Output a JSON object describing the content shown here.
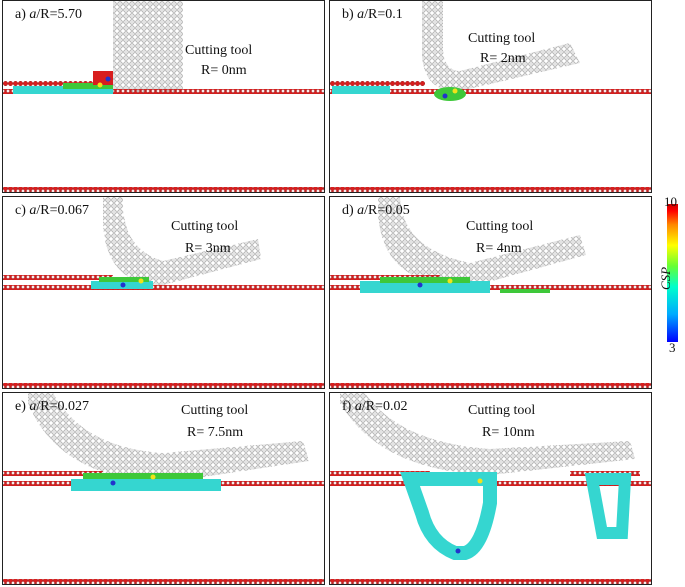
{
  "panels": [
    {
      "id": "a",
      "letter": "a)",
      "ratio_var": "a",
      "ratio_rest": "/R=5.70",
      "tool_title": "Cutting tool",
      "radius": "R= 0nm"
    },
    {
      "id": "b",
      "letter": "b)",
      "ratio_var": "a",
      "ratio_rest": "/R=0.1",
      "tool_title": "Cutting tool",
      "radius": "R= 2nm"
    },
    {
      "id": "c",
      "letter": "c)",
      "ratio_var": "a",
      "ratio_rest": "/R=0.067",
      "tool_title": "Cutting tool",
      "radius": "R= 3nm"
    },
    {
      "id": "d",
      "letter": "d)",
      "ratio_var": "a",
      "ratio_rest": "/R=0.05",
      "tool_title": "Cutting tool",
      "radius": "R= 4nm"
    },
    {
      "id": "e",
      "letter": "e)",
      "ratio_var": "a",
      "ratio_rest": "/R=0.027",
      "tool_title": "Cutting tool",
      "radius": "R= 7.5nm"
    },
    {
      "id": "f",
      "letter": "f)",
      "ratio_var": "a",
      "ratio_rest": "/R=0.02",
      "tool_title": "Cutting tool",
      "radius": "R= 10nm"
    }
  ],
  "colorbar": {
    "max_label": "10",
    "min_label": "3",
    "name": "CSP",
    "colors": [
      "#0000ff",
      "#00aaff",
      "#00ffcc",
      "#66ff33",
      "#ffff00",
      "#ff8800",
      "#ff0000",
      "#cc0000"
    ]
  },
  "palette": {
    "atom_red": "#d81e1e",
    "atom_gray": "#cfcfcf",
    "atom_cyan": "#35d6d0",
    "atom_green": "#3ec83a",
    "atom_blue": "#2233cc",
    "atom_yellow": "#f2e21a"
  }
}
